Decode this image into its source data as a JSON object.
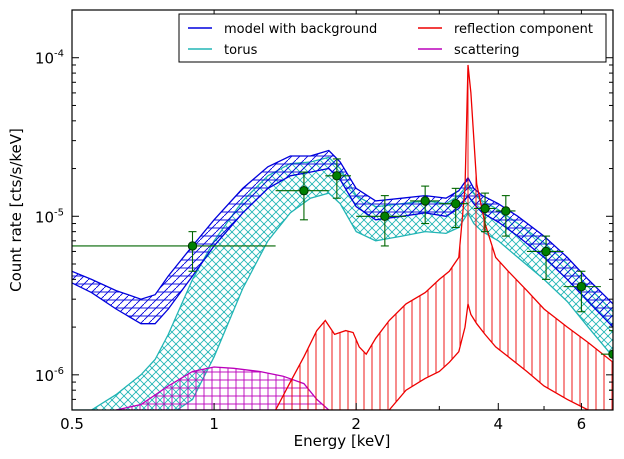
{
  "chart_data": {
    "type": "line",
    "title": "",
    "xlabel": "Energy [keV]",
    "ylabel": "Count rate [cts/s/keV]",
    "xscale": "log",
    "yscale": "log",
    "xlim": [
      0.5,
      7.0
    ],
    "ylim": [
      6e-07,
      0.0002
    ],
    "x_ticks": [
      {
        "value": 0.5,
        "label": "0.5"
      },
      {
        "value": 1,
        "label": "1"
      },
      {
        "value": 2,
        "label": "2"
      },
      {
        "value": 4,
        "label": "4"
      },
      {
        "value": 6,
        "label": "6"
      }
    ],
    "y_ticks": [
      {
        "value": 1e-06,
        "base": "10",
        "exp": "-6"
      },
      {
        "value": 1e-05,
        "base": "10",
        "exp": "-5"
      },
      {
        "value": 0.0001,
        "base": "10",
        "exp": "-4"
      }
    ],
    "legend_position": "top-right",
    "legend": [
      {
        "label": "model with background",
        "color": "#0000dd"
      },
      {
        "label": "reflection component",
        "color": "#ee0000"
      },
      {
        "label": "torus",
        "color": "#22b5b5"
      },
      {
        "label": "scattering",
        "color": "#bb00bb"
      }
    ],
    "series": [
      {
        "name": "model with background",
        "color": "#0000dd",
        "hatch": "horizontal+diagonal",
        "x": [
          0.5,
          0.55,
          0.62,
          0.7,
          0.75,
          0.8,
          0.9,
          1.0,
          1.15,
          1.3,
          1.45,
          1.6,
          1.75,
          1.85,
          2.0,
          2.2,
          2.5,
          2.8,
          3.1,
          3.3,
          3.45,
          3.55,
          3.7,
          4.0,
          4.4,
          5.0,
          5.6,
          6.2,
          7.0
        ],
        "upper": [
          4.5e-06,
          4e-06,
          3.4e-06,
          3e-06,
          3.2e-06,
          4.2e-06,
          6.5e-06,
          9.5e-06,
          1.5e-05,
          2.05e-05,
          2.4e-05,
          2.4e-05,
          2.6e-05,
          2.2e-05,
          1.5e-05,
          1.25e-05,
          1.3e-05,
          1.35e-05,
          1.3e-05,
          1.45e-05,
          1.75e-05,
          1.5e-05,
          1.35e-05,
          1.2e-05,
          1e-05,
          7.5e-06,
          5.5e-06,
          4e-06,
          2.8e-06
        ],
        "lower": [
          3.8e-06,
          3.3e-06,
          2.6e-06,
          2.1e-06,
          2.1e-06,
          2.6e-06,
          4.2e-06,
          6.5e-06,
          1.05e-05,
          1.5e-05,
          1.8e-05,
          1.9e-05,
          2e-05,
          1.7e-05,
          1.15e-05,
          9.5e-06,
          1e-05,
          1.05e-05,
          1e-05,
          1.12e-05,
          1.35e-05,
          1.2e-05,
          1.05e-05,
          9.2e-06,
          7.5e-06,
          5.5e-06,
          4e-06,
          2.9e-06,
          2e-06
        ]
      },
      {
        "name": "torus",
        "color": "#22b5b5",
        "hatch": "cross",
        "x": [
          0.5,
          0.55,
          0.62,
          0.7,
          0.75,
          0.8,
          0.9,
          1.0,
          1.15,
          1.3,
          1.45,
          1.6,
          1.75,
          1.85,
          2.0,
          2.2,
          2.5,
          2.8,
          3.1,
          3.3,
          3.45,
          3.55,
          3.7,
          4.0,
          4.4,
          5.0,
          5.6,
          6.2,
          7.0
        ],
        "upper": [
          6e-07,
          6e-07,
          7.5e-07,
          1e-06,
          1.25e-06,
          1.8e-06,
          4e-06,
          7e-06,
          1.25e-05,
          1.8e-05,
          2.15e-05,
          2.2e-05,
          2.35e-05,
          2e-05,
          1.35e-05,
          1.15e-05,
          1.2e-05,
          1.25e-05,
          1.2e-05,
          1.35e-05,
          1.6e-05,
          1.4e-05,
          1.25e-05,
          1.1e-05,
          9e-06,
          6.8e-06,
          5e-06,
          3.6e-06,
          2.5e-06
        ],
        "lower": [
          6e-07,
          5.5e-07,
          5e-07,
          5e-07,
          5e-07,
          5.5e-07,
          7e-07,
          1.3e-06,
          3.5e-06,
          7e-06,
          1.05e-05,
          1.3e-05,
          1.4e-05,
          1.2e-05,
          8e-06,
          7e-06,
          7.5e-06,
          8e-06,
          7.8e-06,
          8.5e-06,
          1.05e-05,
          9e-06,
          8e-06,
          7e-06,
          5.5e-06,
          4e-06,
          2.9e-06,
          2e-06,
          1.3e-06
        ]
      },
      {
        "name": "reflection component",
        "color": "#ee0000",
        "hatch": "vertical",
        "x": [
          1.35,
          1.45,
          1.55,
          1.65,
          1.72,
          1.8,
          1.9,
          1.97,
          2.03,
          2.1,
          2.2,
          2.35,
          2.55,
          2.8,
          3.0,
          3.15,
          3.3,
          3.4,
          3.45,
          3.5,
          3.6,
          3.75,
          3.95,
          4.2,
          4.6,
          5.0,
          5.6,
          6.2,
          7.0
        ],
        "upper": [
          6e-07,
          9e-07,
          1.3e-06,
          1.9e-06,
          2.2e-06,
          1.8e-06,
          1.9e-06,
          1.85e-06,
          1.5e-06,
          1.35e-06,
          1.7e-06,
          2.2e-06,
          2.8e-06,
          3.3e-06,
          4e-06,
          4.5e-06,
          5.5e-06,
          1.5e-05,
          9e-05,
          6e-05,
          1.6e-05,
          9e-06,
          5.5e-06,
          4.5e-06,
          3.4e-06,
          2.6e-06,
          2e-06,
          1.6e-06,
          1.2e-06
        ],
        "lower": [
          6e-07,
          6e-07,
          6e-07,
          6e-07,
          6e-07,
          6e-07,
          6e-07,
          6e-07,
          6e-07,
          6e-07,
          6e-07,
          6e-07,
          8e-07,
          9.5e-07,
          1.05e-06,
          1.2e-06,
          1.4e-06,
          2e-06,
          2.8e-06,
          2.4e-06,
          2.1e-06,
          1.8e-06,
          1.5e-06,
          1.3e-06,
          1.05e-06,
          8.5e-07,
          7e-07,
          6e-07,
          6e-07
        ]
      },
      {
        "name": "scattering",
        "color": "#bb00bb",
        "hatch": "grid",
        "x": [
          0.62,
          0.7,
          0.8,
          0.9,
          1.0,
          1.1,
          1.25,
          1.4,
          1.55,
          1.65,
          1.75
        ],
        "upper": [
          6e-07,
          6.5e-07,
          8.5e-07,
          1.05e-06,
          1.12e-06,
          1.1e-06,
          1.05e-06,
          9.8e-07,
          8.8e-07,
          7e-07,
          6e-07
        ],
        "lower": [
          6e-07,
          6e-07,
          6e-07,
          6e-07,
          6e-07,
          6e-07,
          6e-07,
          6e-07,
          6e-07,
          6e-07,
          6e-07
        ]
      }
    ],
    "data_points": {
      "name": "data",
      "color": "#006600",
      "points": [
        {
          "x": 0.9,
          "y": 6.5e-06,
          "xerr": [
            0.5,
            1.35
          ],
          "yerr": [
            4.5e-06,
            8e-06
          ]
        },
        {
          "x": 1.55,
          "y": 1.45e-05,
          "xerr": [
            1.35,
            1.75
          ],
          "yerr": [
            9.5e-06,
            1.9e-05
          ]
        },
        {
          "x": 1.82,
          "y": 1.8e-05,
          "xerr": [
            1.72,
            1.95
          ],
          "yerr": [
            1.3e-05,
            2.3e-05
          ]
        },
        {
          "x": 2.3,
          "y": 1e-05,
          "xerr": [
            2.0,
            2.55
          ],
          "yerr": [
            6.5e-06,
            1.35e-05
          ]
        },
        {
          "x": 2.8,
          "y": 1.25e-05,
          "xerr": [
            2.6,
            3.0
          ],
          "yerr": [
            9e-06,
            1.55e-05
          ]
        },
        {
          "x": 3.25,
          "y": 1.2e-05,
          "xerr": [
            3.0,
            3.45
          ],
          "yerr": [
            8.5e-06,
            1.5e-05
          ]
        },
        {
          "x": 3.75,
          "y": 1.12e-05,
          "xerr": [
            3.55,
            3.95
          ],
          "yerr": [
            8e-06,
            1.4e-05
          ]
        },
        {
          "x": 4.15,
          "y": 1.08e-05,
          "xerr": [
            3.95,
            4.35
          ],
          "yerr": [
            7.5e-06,
            1.35e-05
          ]
        },
        {
          "x": 5.05,
          "y": 6e-06,
          "xerr": [
            4.6,
            5.5
          ],
          "yerr": [
            4e-06,
            7.5e-06
          ]
        },
        {
          "x": 6.0,
          "y": 3.6e-06,
          "xerr": [
            5.5,
            6.6
          ],
          "yerr": [
            2.5e-06,
            4.5e-06
          ]
        },
        {
          "x": 7.0,
          "y": 1.35e-06,
          "xerr": [
            6.6,
            7.0
          ],
          "yerr": [
            8e-07,
            1.9e-06
          ]
        }
      ]
    }
  }
}
